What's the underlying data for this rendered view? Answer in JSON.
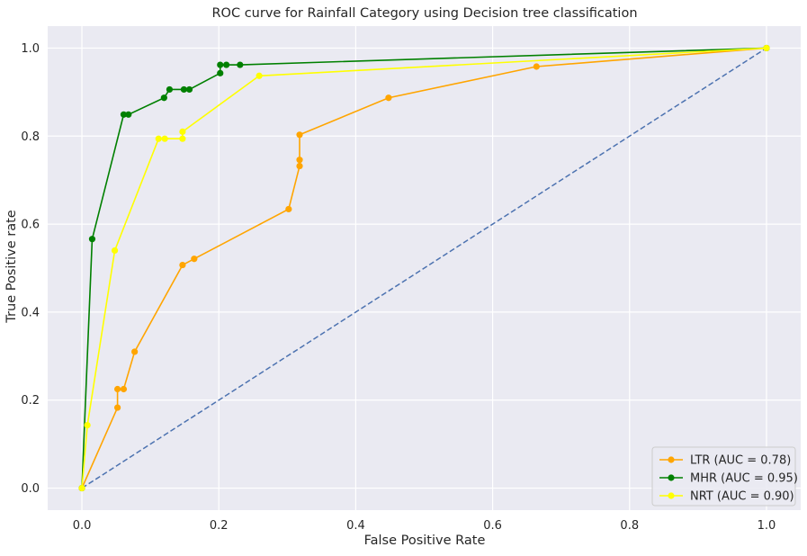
{
  "chart_data": {
    "type": "line",
    "title": "ROC curve for Rainfall Category using Decision tree classification",
    "xlabel": "False Positive Rate",
    "ylabel": "True Positive rate",
    "xlim": [
      -0.05,
      1.05
    ],
    "ylim": [
      -0.05,
      1.05
    ],
    "xticks": [
      0.0,
      0.2,
      0.4,
      0.6,
      0.8,
      1.0
    ],
    "yticks": [
      0.0,
      0.2,
      0.4,
      0.6,
      0.8,
      1.0
    ],
    "xtick_labels": [
      "0.0",
      "0.2",
      "0.4",
      "0.6",
      "0.8",
      "1.0"
    ],
    "ytick_labels": [
      "0.0",
      "0.2",
      "0.4",
      "0.6",
      "0.8",
      "1.0"
    ],
    "grid": true,
    "legend_position": "bottom-right",
    "background_color": "#eaeaf2",
    "grid_color": "#ffffff",
    "series": [
      {
        "name": "LTR (AUC = 0.78)",
        "color": "#ffa500",
        "x": [
          0.0,
          0.052,
          0.052,
          0.061,
          0.077,
          0.147,
          0.164,
          0.302,
          0.318,
          0.318,
          0.318,
          0.448,
          0.664,
          1.0
        ],
        "y": [
          0.0,
          0.183,
          0.225,
          0.225,
          0.31,
          0.507,
          0.521,
          0.634,
          0.732,
          0.746,
          0.803,
          0.887,
          0.958,
          1.0
        ]
      },
      {
        "name": "MHR (AUC = 0.95)",
        "color": "#008000",
        "x": [
          0.0,
          0.015,
          0.061,
          0.068,
          0.12,
          0.128,
          0.149,
          0.157,
          0.202,
          0.202,
          0.211,
          0.231,
          1.0
        ],
        "y": [
          0.0,
          0.566,
          0.849,
          0.849,
          0.887,
          0.906,
          0.906,
          0.906,
          0.943,
          0.962,
          0.962,
          0.962,
          1.0
        ]
      },
      {
        "name": "NRT (AUC = 0.90)",
        "color": "#ffff00",
        "x": [
          0.0,
          0.008,
          0.048,
          0.112,
          0.121,
          0.147,
          0.147,
          0.259,
          1.0
        ],
        "y": [
          0.0,
          0.143,
          0.54,
          0.794,
          0.794,
          0.794,
          0.81,
          0.937,
          1.0
        ]
      }
    ],
    "reference_line": {
      "color": "#4c72b0",
      "style": "dashed",
      "x": [
        0,
        1
      ],
      "y": [
        0,
        1
      ]
    }
  }
}
